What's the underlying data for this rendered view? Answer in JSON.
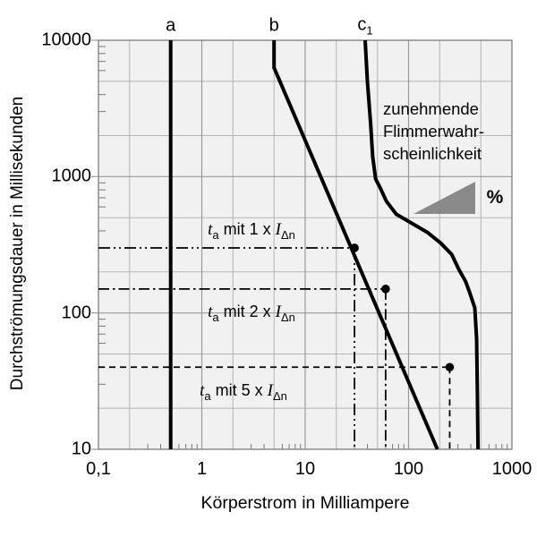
{
  "chart_data": {
    "type": "line",
    "xlabel": "Körperstrom in Milliampere",
    "ylabel": "Durchströmungsdauer in Millisekunden",
    "x_scale": "log",
    "y_scale": "log",
    "xlim": [
      0.1,
      1000
    ],
    "ylim": [
      10,
      10000
    ],
    "x_tick_values": [
      0.1,
      1,
      10,
      100,
      1000
    ],
    "x_tick_labels": [
      "0,1",
      "1",
      "10",
      "100",
      "1000"
    ],
    "y_tick_values": [
      10,
      100,
      1000,
      10000
    ],
    "y_tick_labels": [
      "10",
      "100",
      "1000",
      "10000"
    ],
    "x_minor_gridline_values": [
      0.2,
      0.5,
      2,
      5,
      20,
      50,
      200,
      500
    ],
    "y_minor_gridline_values": [
      20,
      50,
      200,
      500,
      2000,
      5000
    ],
    "grid": "on",
    "series": [
      {
        "name": "curve-a",
        "label": "a",
        "label_sub": "",
        "points": [
          [
            0.5,
            10000
          ],
          [
            0.5,
            10
          ]
        ]
      },
      {
        "name": "curve-b",
        "label": "b",
        "label_sub": "",
        "points": [
          [
            5,
            10000
          ],
          [
            5,
            6300
          ],
          [
            190,
            10
          ]
        ]
      },
      {
        "name": "curve-c1",
        "label": "c",
        "label_sub": "1",
        "points": [
          [
            38,
            10000
          ],
          [
            40,
            5000
          ],
          [
            43,
            2400
          ],
          [
            45,
            1400
          ],
          [
            48,
            960
          ],
          [
            53,
            830
          ],
          [
            61,
            660
          ],
          [
            76,
            530
          ],
          [
            107,
            455
          ],
          [
            152,
            390
          ],
          [
            205,
            325
          ],
          [
            262,
            268
          ],
          [
            308,
            207
          ],
          [
            355,
            171
          ],
          [
            388,
            143
          ],
          [
            437,
            109
          ],
          [
            455,
            65
          ],
          [
            463,
            26
          ],
          [
            470,
            10
          ]
        ]
      }
    ],
    "markers": [
      {
        "x": 30,
        "y": 300,
        "guide_style": "dashdotdot",
        "multiplier": "1"
      },
      {
        "x": 60,
        "y": 150,
        "guide_style": "dashdot",
        "multiplier": "2"
      },
      {
        "x": 250,
        "y": 40,
        "guide_style": "dash",
        "multiplier": "5"
      }
    ],
    "guide_label_parts": {
      "t": "t",
      "t_sub": "a",
      "mit": "mit",
      "times": "x",
      "i": "I",
      "i_sub": "Δn"
    },
    "annotation": {
      "lines": [
        "zunehmende",
        "Flimmerwahr-",
        "scheinlichkeit"
      ],
      "percent": "%"
    },
    "colors": {
      "plot_bg": "#f1f1f1",
      "grid_minor": "#b4b4b4",
      "grid_major": "#9a9a9a",
      "border": "#888888",
      "tick": "#777777",
      "curve": "#000000",
      "marker": "#000000",
      "triangle": "#8a8a8a",
      "text": "#000000"
    }
  }
}
